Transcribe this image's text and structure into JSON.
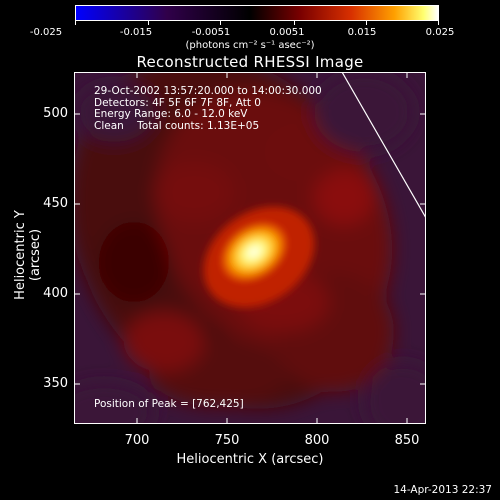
{
  "colorbar": {
    "ticks": [
      "-0.025",
      "-0.015",
      "-0.0051",
      "0.0051",
      "0.015",
      "0.025"
    ],
    "units": "(photons cm⁻² s⁻¹ asec⁻²)",
    "colormap": [
      "#0000ff",
      "#1a0020",
      "#000000",
      "#6a0000",
      "#d02000",
      "#ff9a00",
      "#ffff80",
      "#ffffff"
    ]
  },
  "title": "Reconstructed RHESSI Image",
  "info": {
    "line1": "29-Oct-2002 13:57:20.000 to 14:00:30.000",
    "line2": "Detectors: 4F 5F 6F 7F 8F, Att 0",
    "line3": "Energy Range: 6.0 - 12.0 keV",
    "line4": "Clean    Total counts: 1.13E+05"
  },
  "peak_text": "Position of Peak = [762,425]",
  "axes": {
    "xlabel": "Heliocentric X (arcsec)",
    "ylabel": "Heliocentric Y (arcsec)",
    "xticks": [
      "700",
      "750",
      "800",
      "850"
    ],
    "yticks": [
      "500",
      "450",
      "400",
      "350"
    ],
    "xrange": [
      665,
      860
    ],
    "yrange": [
      330,
      525
    ]
  },
  "source_peak": [
    762,
    425
  ],
  "timestamp": "14-Apr-2013 22:37"
}
